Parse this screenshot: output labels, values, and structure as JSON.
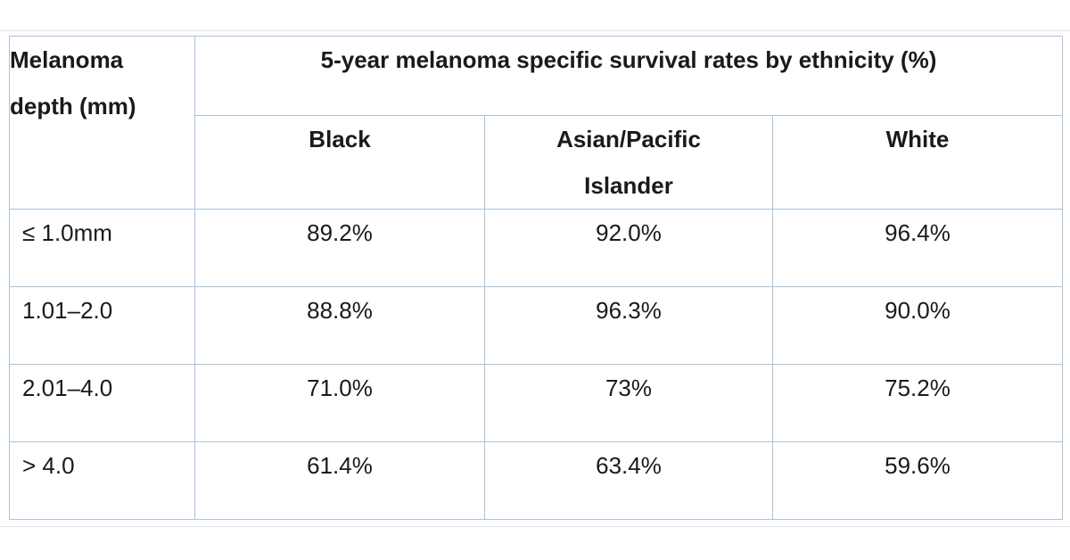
{
  "table": {
    "depth_header_line1": "Melanoma",
    "depth_header_line2": "depth (mm)",
    "title": "5-year melanoma specific survival rates by ethnicity (%)",
    "columns": {
      "black": "Black",
      "asian_line1": "Asian/Pacific",
      "asian_line2": "Islander",
      "white": "White"
    },
    "rows": [
      {
        "depth": "≤ 1.0mm",
        "black": "89.2%",
        "asian": "92.0%",
        "white": "96.4%"
      },
      {
        "depth": "1.01–2.0",
        "black": "88.8%",
        "asian": "96.3%",
        "white": "90.0%"
      },
      {
        "depth": "2.01–4.0",
        "black": "71.0%",
        "asian": "73%",
        "white": "75.2%"
      },
      {
        "depth": "> 4.0",
        "black": "61.4%",
        "asian": "63.4%",
        "white": "59.6%"
      }
    ]
  },
  "colors": {
    "border": "#a9c3dd",
    "text": "#1a1a1a",
    "background": "#ffffff"
  }
}
